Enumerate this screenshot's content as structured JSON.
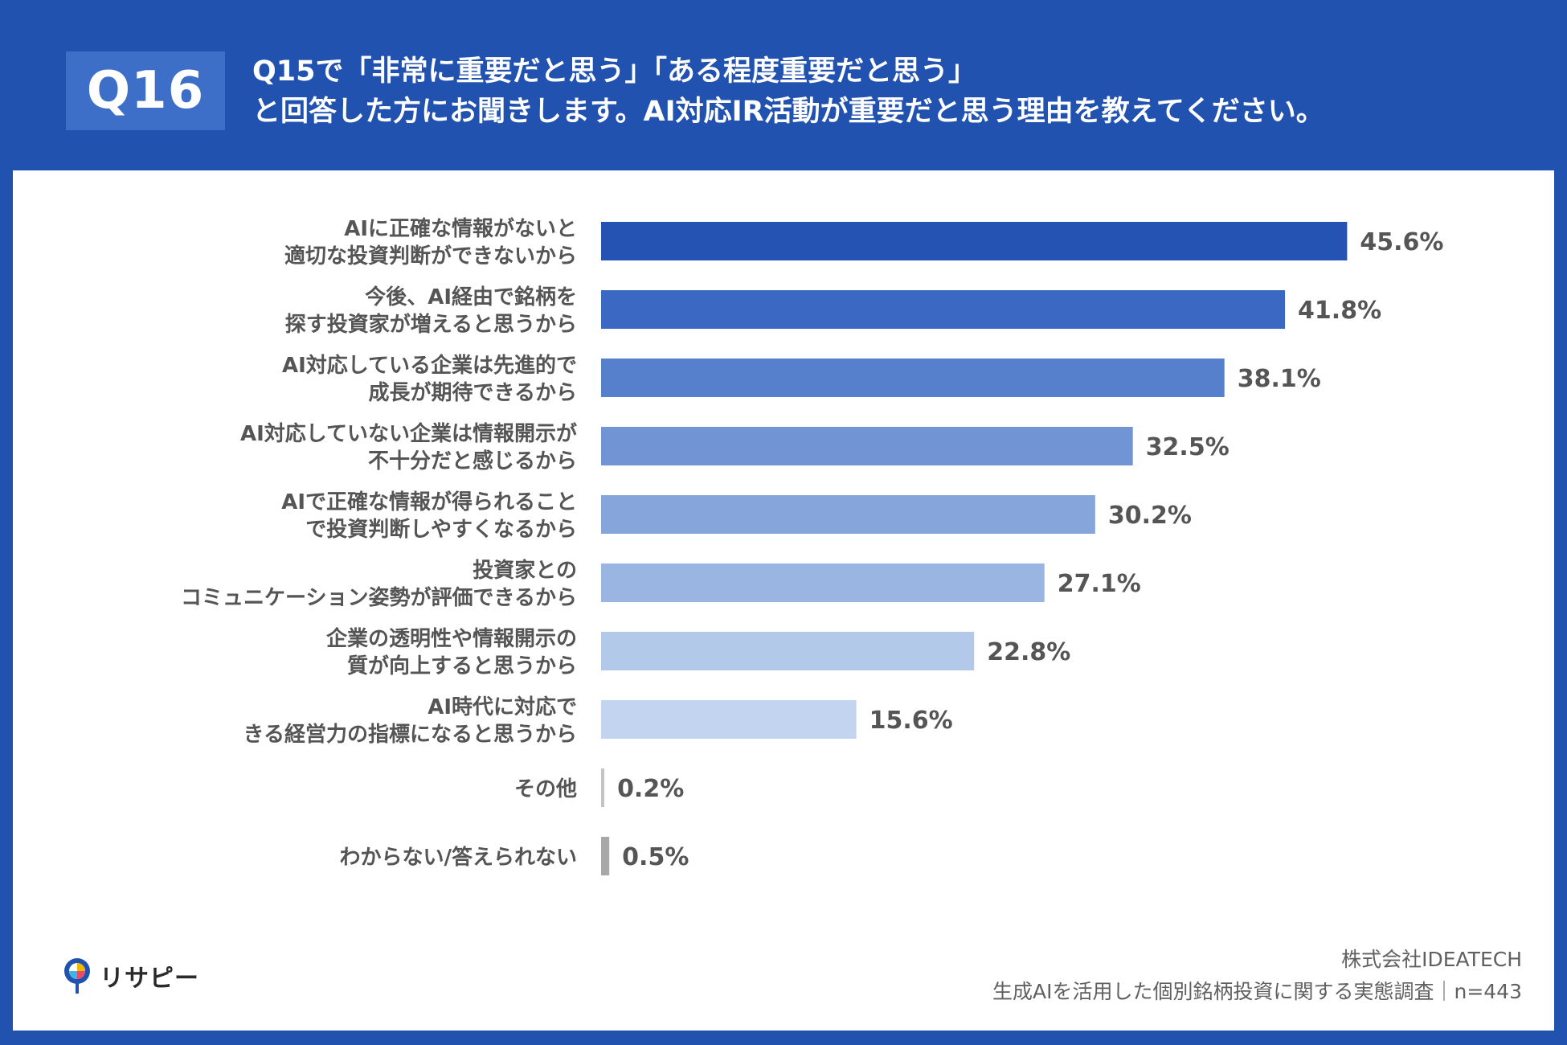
{
  "header": {
    "badge": "Q16",
    "title_line1": "Q15で「非常に重要だと思う」「ある程度重要だと思う」",
    "title_line2": "と回答した方にお聞きします。AI対応IR活動が重要だと思う理由を教えてください。"
  },
  "chart_data": {
    "type": "bar",
    "orientation": "horizontal",
    "categories": [
      [
        "AIに正確な情報がないと",
        "適切な投資判断ができないから"
      ],
      [
        "今後、AI経由で銘柄を",
        "探す投資家が増えると思うから"
      ],
      [
        "AI対応している企業は先進的で",
        "成長が期待できるから"
      ],
      [
        "AI対応していない企業は情報開示が",
        "不十分だと感じるから"
      ],
      [
        "AIで正確な情報が得られること",
        "で投資判断しやすくなるから"
      ],
      [
        "投資家との",
        "コミュニケーション姿勢が評価できるから"
      ],
      [
        "企業の透明性や情報開示の",
        "質が向上すると思うから"
      ],
      [
        "AI時代に対応で",
        "きる経営力の指標になると思うから"
      ],
      [
        "その他"
      ],
      [
        "わからない/答えられない"
      ]
    ],
    "values": [
      45.6,
      41.8,
      38.1,
      32.5,
      30.2,
      27.1,
      22.8,
      15.6,
      0.2,
      0.5
    ],
    "value_labels": [
      "45.6%",
      "41.8%",
      "38.1%",
      "32.5%",
      "30.2%",
      "27.1%",
      "22.8%",
      "15.6%",
      "0.2%",
      "0.5%"
    ],
    "colors": [
      "#2453b3",
      "#3a68c2",
      "#5780cc",
      "#7195d4",
      "#86a6db",
      "#9ab5e2",
      "#b3c9ea",
      "#c2d4ef",
      "#c4c4c4",
      "#a8a8a8"
    ],
    "xlim": [
      0,
      50
    ],
    "title": "",
    "xlabel": "",
    "ylabel": ""
  },
  "footer": {
    "logo_text": "リサピー",
    "company": "株式会社IDEATECH",
    "survey": "生成AIを活用した個別銘柄投資に関する実態調査｜n=443"
  }
}
